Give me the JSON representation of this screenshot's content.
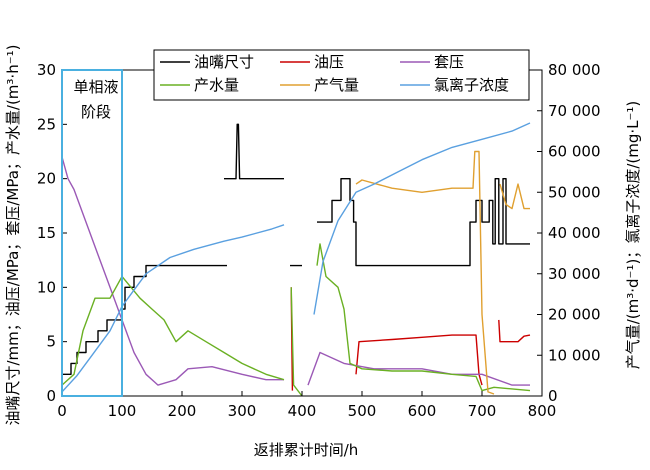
{
  "chart_data": {
    "type": "line",
    "xlabel": "返排累计时间/h",
    "ylabel_left": "油嘴尺寸/mm；油压/MPa；套压/MPa；产水量/(m³·h⁻¹)",
    "ylabel_right": "产气量/(m³·d⁻¹)；氯离子浓度/(mg·L⁻¹)",
    "xlim": [
      0,
      800
    ],
    "ylim_left": [
      0,
      30
    ],
    "ylim_right": [
      0,
      80000
    ],
    "x_ticks": [
      "0",
      "100",
      "200",
      "300",
      "400",
      "500",
      "600",
      "700",
      "800"
    ],
    "y_ticks_left": [
      "0",
      "5",
      "10",
      "15",
      "20",
      "25",
      "30"
    ],
    "y_ticks_right": [
      "0",
      "10 000",
      "20 000",
      "30 000",
      "40 000",
      "50 000",
      "60 000",
      "70 000",
      "80 000"
    ],
    "annotation": "单相液\n阶段",
    "annotation_lines": [
      "单相液",
      "阶段"
    ],
    "annotation_box_x": [
      0,
      100
    ],
    "legend": [
      "油嘴尺寸",
      "油压",
      "套压",
      "产水量",
      "产气量",
      "氯离子浓度"
    ],
    "series": [
      {
        "name": "油嘴尺寸",
        "axis": "left",
        "color": "#000000",
        "step": true,
        "points": [
          [
            0,
            2
          ],
          [
            15,
            2
          ],
          [
            15,
            3
          ],
          [
            25,
            3
          ],
          [
            25,
            4
          ],
          [
            40,
            4
          ],
          [
            40,
            5
          ],
          [
            60,
            5
          ],
          [
            60,
            6
          ],
          [
            75,
            6
          ],
          [
            75,
            7
          ],
          [
            100,
            7
          ],
          [
            100,
            8
          ],
          [
            105,
            8
          ],
          [
            105,
            10
          ],
          [
            120,
            10
          ],
          [
            120,
            11
          ],
          [
            140,
            11
          ],
          [
            140,
            12
          ],
          [
            275,
            12
          ],
          null,
          [
            270,
            20
          ],
          [
            290,
            20
          ],
          [
            292,
            25
          ],
          [
            294,
            25
          ],
          [
            296,
            20
          ],
          [
            370,
            20
          ],
          null,
          [
            380,
            12
          ],
          [
            400,
            12
          ],
          null,
          [
            425,
            16
          ],
          [
            450,
            16
          ],
          [
            450,
            18
          ],
          [
            465,
            18
          ],
          [
            465,
            20
          ],
          [
            480,
            20
          ],
          [
            480,
            18
          ],
          [
            486,
            18
          ],
          [
            486,
            16
          ],
          [
            490,
            16
          ],
          [
            490,
            12
          ],
          [
            680,
            12
          ],
          [
            680,
            16
          ],
          [
            690,
            16
          ],
          [
            690,
            18
          ],
          [
            700,
            18
          ],
          [
            700,
            16
          ],
          [
            712,
            16
          ],
          [
            712,
            18
          ],
          [
            718,
            18
          ],
          [
            718,
            14
          ],
          [
            722,
            14
          ],
          [
            722,
            20
          ],
          [
            728,
            20
          ],
          [
            728,
            14
          ],
          [
            735,
            14
          ],
          [
            735,
            20
          ],
          [
            740,
            20
          ],
          [
            740,
            14
          ],
          [
            780,
            14
          ]
        ]
      },
      {
        "name": "油压",
        "axis": "left",
        "color": "#cc0000",
        "step": false,
        "points": [
          [
            382,
            10
          ],
          [
            384,
            0.5
          ],
          null,
          [
            490,
            2
          ],
          [
            495,
            5
          ],
          [
            550,
            5.2
          ],
          [
            600,
            5.4
          ],
          [
            650,
            5.6
          ],
          [
            690,
            5.6
          ],
          [
            695,
            2
          ],
          [
            700,
            1
          ],
          null,
          [
            728,
            7
          ],
          [
            730,
            5
          ],
          [
            760,
            5
          ],
          [
            770,
            5.5
          ],
          [
            780,
            5.6
          ]
        ]
      },
      {
        "name": "套压",
        "axis": "left",
        "color": "#9b59b6",
        "step": false,
        "points": [
          [
            0,
            22
          ],
          [
            10,
            20
          ],
          [
            20,
            19
          ],
          [
            40,
            16
          ],
          [
            60,
            13
          ],
          [
            80,
            10
          ],
          [
            100,
            7
          ],
          [
            120,
            4
          ],
          [
            140,
            2
          ],
          [
            160,
            1
          ],
          [
            190,
            1.5
          ],
          [
            210,
            2.5
          ],
          [
            250,
            2.7
          ],
          [
            300,
            2
          ],
          [
            340,
            1.5
          ],
          [
            370,
            1.5
          ],
          null,
          [
            410,
            1
          ],
          [
            430,
            4
          ],
          [
            470,
            3
          ],
          [
            520,
            2.5
          ],
          [
            600,
            2.5
          ],
          [
            650,
            2
          ],
          [
            700,
            2
          ],
          [
            750,
            1
          ],
          [
            780,
            1
          ]
        ]
      },
      {
        "name": "产水量",
        "axis": "left",
        "color": "#6ab023",
        "step": false,
        "points": [
          [
            0,
            1
          ],
          [
            20,
            2
          ],
          [
            35,
            6
          ],
          [
            55,
            9
          ],
          [
            80,
            9
          ],
          [
            100,
            11
          ],
          [
            115,
            10
          ],
          [
            130,
            9
          ],
          [
            150,
            8
          ],
          [
            170,
            7
          ],
          [
            190,
            5
          ],
          [
            210,
            6
          ],
          [
            240,
            5
          ],
          [
            270,
            4
          ],
          [
            300,
            3
          ],
          [
            340,
            2
          ],
          [
            370,
            1.5
          ],
          null,
          [
            382,
            10
          ],
          [
            386,
            1
          ],
          [
            400,
            0
          ],
          null,
          [
            425,
            12
          ],
          [
            430,
            14
          ],
          [
            440,
            11
          ],
          [
            460,
            10
          ],
          [
            470,
            8
          ],
          [
            480,
            3
          ],
          [
            500,
            2.5
          ],
          [
            550,
            2.3
          ],
          [
            600,
            2.3
          ],
          [
            650,
            2
          ],
          [
            690,
            1.8
          ],
          [
            700,
            0.5
          ],
          [
            720,
            0.8
          ],
          [
            780,
            0.5
          ]
        ]
      },
      {
        "name": "产气量",
        "axis": "right",
        "color": "#e0a030",
        "step": false,
        "points": [
          [
            490,
            52000
          ],
          [
            500,
            53000
          ],
          [
            550,
            51000
          ],
          [
            600,
            50000
          ],
          [
            650,
            51000
          ],
          [
            685,
            51000
          ],
          [
            688,
            60000
          ],
          [
            695,
            60000
          ],
          [
            700,
            20000
          ],
          [
            710,
            1000
          ],
          [
            720,
            500
          ],
          null,
          [
            730,
            52000
          ],
          [
            740,
            47000
          ],
          [
            750,
            46000
          ],
          [
            760,
            52000
          ],
          [
            770,
            46000
          ],
          [
            780,
            46000
          ]
        ]
      },
      {
        "name": "氯离子浓度",
        "axis": "right",
        "color": "#5aa0e0",
        "step": false,
        "points": [
          [
            0,
            1000
          ],
          [
            25,
            5000
          ],
          [
            50,
            10000
          ],
          [
            80,
            16000
          ],
          [
            100,
            22000
          ],
          [
            120,
            26000
          ],
          [
            140,
            30000
          ],
          [
            180,
            34000
          ],
          [
            220,
            36000
          ],
          [
            270,
            38000
          ],
          [
            300,
            39000
          ],
          [
            350,
            41000
          ],
          [
            370,
            42000
          ],
          null,
          [
            420,
            20000
          ],
          [
            435,
            33000
          ],
          [
            460,
            43000
          ],
          [
            490,
            50000
          ],
          [
            520,
            52000
          ],
          [
            560,
            55000
          ],
          [
            600,
            58000
          ],
          [
            650,
            61000
          ],
          [
            700,
            63000
          ],
          [
            750,
            65000
          ],
          [
            780,
            67000
          ]
        ]
      }
    ]
  }
}
